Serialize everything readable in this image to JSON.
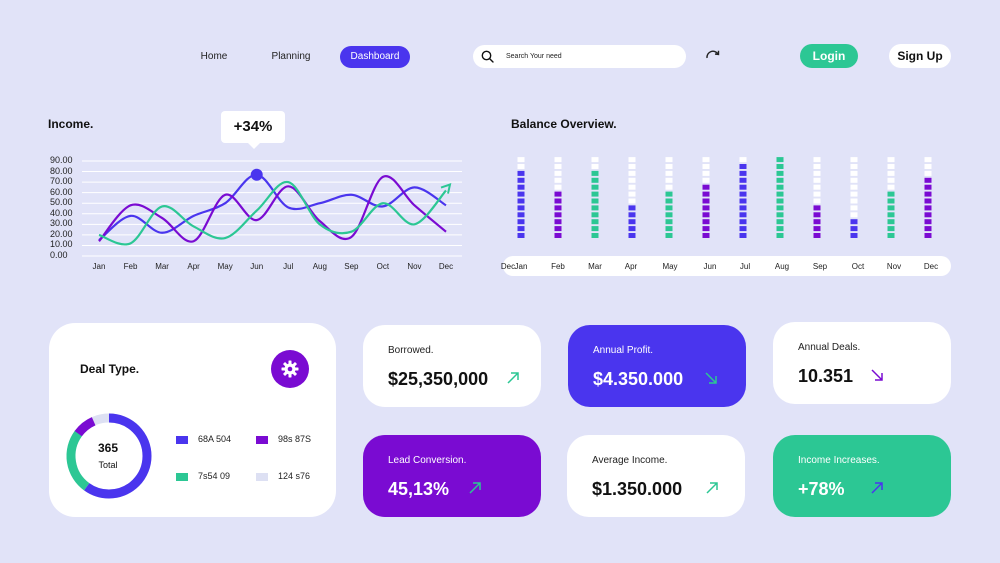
{
  "nav": {
    "home": "Home",
    "planning": "Planning",
    "dashboard": "Dashboard",
    "search_placeholder": "Search Your need",
    "login": "Login",
    "signup": "Sign Up"
  },
  "income": {
    "title": "Income.",
    "badge": "+34%",
    "y_ticks": [
      "90.00",
      "80.00",
      "70.00",
      "60.00",
      "50.00",
      "40.00",
      "30.00",
      "20.00",
      "10.00",
      "0.00"
    ],
    "months": [
      "Jan",
      "Feb",
      "Mar",
      "Apr",
      "May",
      "Jun",
      "Jul",
      "Aug",
      "Sep",
      "Oct",
      "Nov",
      "Dec"
    ]
  },
  "balance": {
    "title": "Balance Overview.",
    "months": [
      "Dec",
      "Jan",
      "Feb",
      "Mar",
      "Apr",
      "May",
      "Jun",
      "Jul",
      "Aug",
      "Sep",
      "Oct",
      "Nov",
      "Dec"
    ]
  },
  "deal": {
    "title": "Deal Type.",
    "total_value": "365",
    "total_label": "Total",
    "legend": [
      {
        "label": "68A 504",
        "color": "#4a35ee"
      },
      {
        "label": "98s 87S",
        "color": "#7a0bd2"
      },
      {
        "label": "7s54 09",
        "color": "#2cc794"
      },
      {
        "label": "124 s76",
        "color": "#dde0f3"
      }
    ]
  },
  "stats": {
    "borrowed": {
      "label": "Borrowed.",
      "value": "$25,350,000"
    },
    "annual_profit": {
      "label": "Annual Profit.",
      "value": "$4.350.000"
    },
    "annual_deals": {
      "label": "Annual Deals.",
      "value": "10.351"
    },
    "lead_conversion": {
      "label": "Lead Conversion.",
      "value": "45,13%"
    },
    "average_income": {
      "label": "Average Income.",
      "value": "$1.350.000"
    },
    "income_increases": {
      "label": "Income Increases.",
      "value": "+78%"
    }
  },
  "colors": {
    "blue": "#4a35ee",
    "purple": "#7a0bd2",
    "green": "#2cc794",
    "background": "#e1e3f8"
  },
  "chart_data": [
    {
      "type": "line",
      "title": "Income.",
      "categories": [
        "Jan",
        "Feb",
        "Mar",
        "Apr",
        "May",
        "Jun",
        "Jul",
        "Aug",
        "Sep",
        "Oct",
        "Nov",
        "Dec"
      ],
      "ylim": [
        0,
        90
      ],
      "series": [
        {
          "color": "#4a35ee",
          "values": [
            15,
            38,
            22,
            38,
            50,
            77,
            46,
            50,
            58,
            47,
            65,
            48
          ]
        },
        {
          "color": "#7a0bd2",
          "values": [
            14,
            48,
            36,
            14,
            58,
            34,
            66,
            33,
            18,
            75,
            48,
            23
          ]
        },
        {
          "color": "#2cc794",
          "values": [
            20,
            12,
            47,
            28,
            17,
            43,
            70,
            30,
            23,
            50,
            30,
            62
          ]
        }
      ]
    },
    {
      "type": "bar",
      "title": "Balance Overview.",
      "categories": [
        "Jan",
        "Feb",
        "Mar",
        "Apr",
        "May",
        "Jun",
        "Jul",
        "Aug",
        "Sep",
        "Oct",
        "Nov",
        "Dec"
      ],
      "max_segments": 12,
      "values": [
        10,
        7,
        10,
        5,
        7,
        8,
        11,
        12,
        5,
        3,
        7,
        9
      ],
      "colors": [
        "#4a35ee",
        "#7a0bd2",
        "#2cc794",
        "#4a35ee",
        "#2cc794",
        "#7a0bd2",
        "#4a35ee",
        "#2cc794",
        "#7a0bd2",
        "#4a35ee",
        "#2cc794",
        "#7a0bd2"
      ]
    }
  ]
}
